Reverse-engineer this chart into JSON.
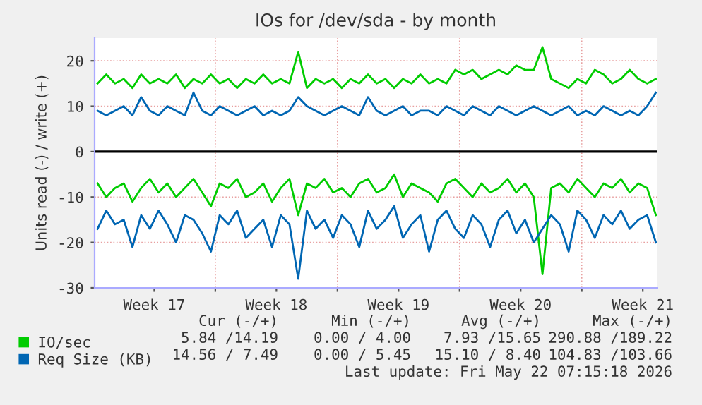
{
  "chart_data": {
    "type": "line",
    "title": "IOs for /dev/sda - by month",
    "ylabel": "Units read (-) / write (+)",
    "x": [
      "2026-04-20T06:00",
      "2026-04-20T18:00",
      "2026-04-21T06:00",
      "2026-04-21T18:00",
      "2026-04-22T06:00",
      "2026-04-22T18:00",
      "2026-04-23T06:00",
      "2026-04-23T18:00",
      "2026-04-24T06:00",
      "2026-04-24T18:00",
      "2026-04-25T06:00",
      "2026-04-25T18:00",
      "2026-04-26T06:00",
      "2026-04-26T18:00",
      "2026-04-27T06:00",
      "2026-04-27T18:00",
      "2026-04-28T06:00",
      "2026-04-28T18:00",
      "2026-04-29T06:00",
      "2026-04-29T18:00",
      "2026-04-30T06:00",
      "2026-04-30T18:00",
      "2026-05-01T06:00",
      "2026-05-01T18:00",
      "2026-05-02T06:00",
      "2026-05-02T18:00",
      "2026-05-03T06:00",
      "2026-05-03T18:00",
      "2026-05-04T06:00",
      "2026-05-04T18:00",
      "2026-05-05T06:00",
      "2026-05-05T18:00",
      "2026-05-06T06:00",
      "2026-05-06T18:00",
      "2026-05-07T06:00",
      "2026-05-07T18:00",
      "2026-05-08T06:00",
      "2026-05-08T18:00",
      "2026-05-09T06:00",
      "2026-05-09T18:00",
      "2026-05-10T06:00",
      "2026-05-10T18:00",
      "2026-05-11T06:00",
      "2026-05-11T18:00",
      "2026-05-12T06:00",
      "2026-05-12T18:00",
      "2026-05-13T06:00",
      "2026-05-13T18:00",
      "2026-05-14T06:00",
      "2026-05-14T18:00",
      "2026-05-15T06:00",
      "2026-05-15T18:00",
      "2026-05-16T06:00",
      "2026-05-16T18:00",
      "2026-05-17T06:00",
      "2026-05-17T18:00",
      "2026-05-18T06:00",
      "2026-05-18T18:00",
      "2026-05-19T06:00",
      "2026-05-19T18:00",
      "2026-05-20T06:00",
      "2026-05-20T18:00",
      "2026-05-21T06:00",
      "2026-05-21T18:00",
      "2026-05-22T06:00"
    ],
    "series": [
      {
        "name": "IO/sec",
        "color": "#00cc00",
        "values": [
          15,
          17,
          15,
          16,
          14,
          17,
          15,
          16,
          15,
          17,
          14,
          16,
          15,
          17,
          15,
          16,
          14,
          16,
          15,
          17,
          15,
          16,
          15,
          22,
          14,
          16,
          15,
          16,
          14,
          16,
          15,
          17,
          15,
          16,
          14,
          16,
          15,
          17,
          15,
          16,
          15,
          18,
          17,
          18,
          16,
          17,
          18,
          17,
          19,
          18,
          18,
          23,
          16,
          15,
          14,
          16,
          15,
          18,
          17,
          15,
          16,
          18,
          16,
          15,
          16
        ]
      },
      {
        "color": "#00cc00",
        "values": [
          -7,
          -10,
          -8,
          -7,
          -11,
          -8,
          -6,
          -9,
          -7,
          -10,
          -8,
          -6,
          -9,
          -12,
          -7,
          -8,
          -6,
          -10,
          -9,
          -7,
          -11,
          -8,
          -6,
          -14,
          -7,
          -8,
          -6,
          -9,
          -8,
          -10,
          -7,
          -6,
          -9,
          -8,
          -5,
          -10,
          -7,
          -8,
          -9,
          -11,
          -7,
          -6,
          -8,
          -10,
          -7,
          -9,
          -8,
          -6,
          -9,
          -7,
          -10,
          -27,
          -8,
          -7,
          -9,
          -6,
          -8,
          -10,
          -7,
          -8,
          -6,
          -9,
          -7,
          -8,
          -14
        ]
      },
      {
        "name": "Req Size (KB)",
        "color": "#0066b3",
        "values": [
          9,
          8,
          9,
          10,
          8,
          12,
          9,
          8,
          10,
          9,
          8,
          13,
          9,
          8,
          10,
          9,
          8,
          9,
          10,
          8,
          9,
          8,
          9,
          12,
          10,
          9,
          8,
          9,
          10,
          9,
          8,
          12,
          9,
          8,
          9,
          10,
          8,
          9,
          9,
          8,
          10,
          9,
          8,
          10,
          9,
          8,
          10,
          9,
          8,
          9,
          10,
          9,
          8,
          9,
          10,
          8,
          9,
          8,
          10,
          9,
          8,
          9,
          8,
          10,
          13
        ]
      },
      {
        "color": "#0066b3",
        "values": [
          -17,
          -13,
          -16,
          -15,
          -21,
          -14,
          -17,
          -13,
          -16,
          -20,
          -14,
          -15,
          -18,
          -22,
          -14,
          -16,
          -13,
          -19,
          -17,
          -15,
          -21,
          -14,
          -16,
          -28,
          -13,
          -17,
          -15,
          -19,
          -14,
          -16,
          -21,
          -13,
          -17,
          -15,
          -12,
          -19,
          -16,
          -14,
          -22,
          -15,
          -13,
          -17,
          -19,
          -14,
          -16,
          -21,
          -15,
          -13,
          -18,
          -15,
          -20,
          -17,
          -14,
          -16,
          -22,
          -13,
          -15,
          -19,
          -14,
          -16,
          -13,
          -17,
          -15,
          -14,
          -20
        ]
      }
    ],
    "xlim": [
      "2026-04-20T02:00",
      "2026-05-22T07:15"
    ],
    "ylim": [
      -30,
      25
    ],
    "xticks": [
      {
        "value": "2026-04-23T12:00",
        "label": "Week 17"
      },
      {
        "value": "2026-04-27",
        "label": null
      },
      {
        "value": "2026-04-30T12:00",
        "label": "Week 18"
      },
      {
        "value": "2026-05-04",
        "label": null
      },
      {
        "value": "2026-05-07T12:00",
        "label": "Week 19"
      },
      {
        "value": "2026-05-11",
        "label": null
      },
      {
        "value": "2026-05-14T12:00",
        "label": "Week 20"
      },
      {
        "value": "2026-05-18",
        "label": null
      },
      {
        "value": "2026-05-21T12:00",
        "label": "Week 21"
      }
    ],
    "yticks": [
      -30,
      -20,
      -10,
      0,
      10,
      20
    ],
    "ref_lines": [
      {
        "axis": "y",
        "value": 0,
        "color": "#000000"
      }
    ],
    "grid": true,
    "legend": "bottom left",
    "annotations": [
      "Cur (-/+)",
      "Min (-/+)",
      "Avg (-/+)",
      "Max (-/+)",
      "5.84 /14.19",
      "0.00 / 4.00",
      "7.93 /15.65",
      "290.88 /189.22",
      "14.56 / 7.49",
      "0.00 / 5.45",
      "15.10 / 8.40",
      "104.83 /103.66",
      "Last update: Fri May 22 07:15:18 2026"
    ]
  }
}
